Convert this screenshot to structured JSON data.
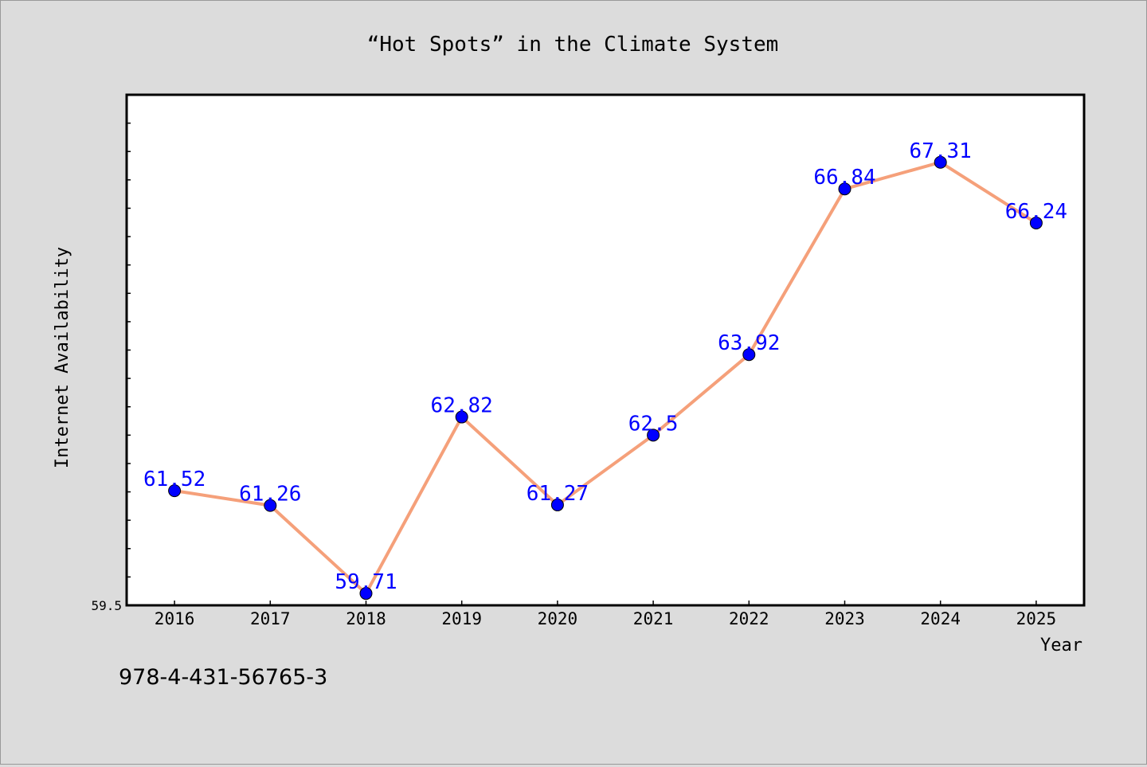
{
  "chart_data": {
    "type": "line",
    "title": "“Hot Spots” in the Climate System",
    "xlabel": "Year",
    "ylabel": "Internet Availability",
    "categories": [
      "2016",
      "2017",
      "2018",
      "2019",
      "2020",
      "2021",
      "2022",
      "2023",
      "2024",
      "2025"
    ],
    "series": [
      {
        "values": [
          61.52,
          61.26,
          59.71,
          62.82,
          61.27,
          62.5,
          63.92,
          66.84,
          67.31,
          66.24
        ]
      }
    ],
    "data_labels": [
      "61.52",
      "61.26",
      "59.71",
      "62.82",
      "61.27",
      "62.5",
      "63.92",
      "66.84",
      "67.31",
      "66.24"
    ],
    "ylim": [
      59.5,
      68.5
    ],
    "y_tick_labels": [
      "59.5"
    ],
    "grid": false,
    "line_color": "#f5a07a",
    "marker_color": "#0000ff",
    "label_color": "#0000ff"
  },
  "isbn_text": "978-4-431-56765-3"
}
